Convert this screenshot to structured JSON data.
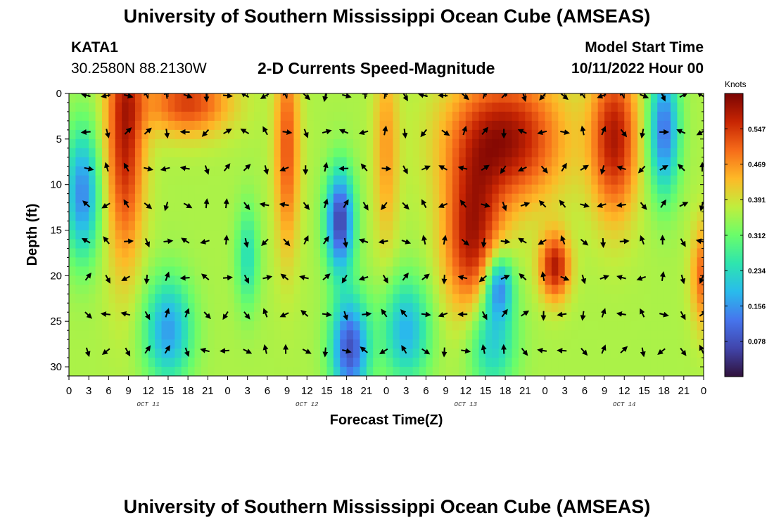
{
  "header": {
    "title": "University of Southern Mississippi Ocean Cube (AMSEAS)",
    "station": "KATA1",
    "coordinates": "30.2580N  88.2130W",
    "subtitle": "2-D Currents Speed-Magnitude",
    "model_start_label": "Model Start Time",
    "model_start_value": "10/11/2022 Hour 00"
  },
  "footer": {
    "title": "University of Southern Mississippi Ocean Cube (AMSEAS)"
  },
  "chart_data": {
    "type": "heatmap",
    "title": "2-D Currents Speed-Magnitude",
    "xlabel": "Forecast Time(Z)",
    "ylabel": "Depth (ft)",
    "x_ticks": [
      "0",
      "3",
      "6",
      "9",
      "12",
      "15",
      "18",
      "21",
      "0",
      "3",
      "6",
      "9",
      "12",
      "15",
      "18",
      "21",
      "0",
      "3",
      "6",
      "9",
      "12",
      "15",
      "18",
      "21",
      "0",
      "3",
      "6",
      "9",
      "12",
      "15",
      "18",
      "21",
      "0"
    ],
    "day_labels": [
      {
        "label": "OCT 11",
        "hour": 12
      },
      {
        "label": "OCT 12",
        "hour": 36
      },
      {
        "label": "OCT 13",
        "hour": 60
      },
      {
        "label": "OCT 14",
        "hour": 84
      }
    ],
    "xlim_hours": [
      0,
      96
    ],
    "y_ticks": [
      0,
      5,
      10,
      15,
      20,
      25,
      30
    ],
    "ylim_ft": [
      0,
      31
    ],
    "colorbar": {
      "unit": "Knots",
      "ticks": [
        "0.547",
        "0.469",
        "0.391",
        "0.312",
        "0.234",
        "0.156",
        "0.078"
      ],
      "tick_values": [
        0.547,
        0.469,
        0.391,
        0.312,
        0.234,
        0.156,
        0.078
      ],
      "range": [
        0.0,
        0.625
      ]
    },
    "vector_hours": [
      3,
      6,
      9,
      12,
      15,
      18,
      21,
      24,
      27,
      30,
      33,
      36,
      39,
      42,
      45,
      48,
      51,
      54,
      57,
      60,
      63,
      66,
      69,
      72,
      75,
      78,
      81,
      84,
      87,
      90,
      93,
      96
    ],
    "vector_depths_ft": [
      0,
      4,
      8,
      12,
      16,
      20,
      24,
      28
    ],
    "description": "Current speed magnitude (knots) vs forecast time and depth with direction arrows; high speeds (~0.55+ kt) near surface at hours 6-11, 13-23, 31-35, 47-49, 57-75, 79-86; strong mid-depth pocket at hours 72-75, 16-23 ft."
  }
}
